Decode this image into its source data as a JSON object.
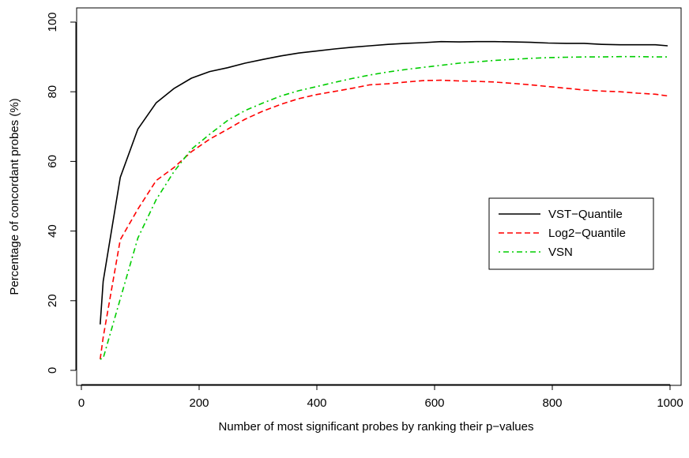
{
  "chart_data": {
    "type": "line",
    "title": "",
    "xlabel": "Number of most significant probes by ranking their p−values",
    "ylabel": "Percentage of concordant probes (%)",
    "xlim": [
      0,
      1000
    ],
    "ylim": [
      0,
      100
    ],
    "x_ticks": [
      0,
      200,
      400,
      600,
      800,
      1000
    ],
    "x_tick_labels": [
      "0",
      "200",
      "400",
      "600",
      "800",
      "1000"
    ],
    "y_ticks": [
      0,
      20,
      40,
      60,
      80,
      100
    ],
    "y_tick_labels": [
      "0",
      "20",
      "40",
      "60",
      "80",
      "100"
    ],
    "grid": false,
    "legend_position": "right",
    "series": [
      {
        "name": "VST−Quantile",
        "color": "#000000",
        "dash": "solid",
        "x": [
          32,
          37,
          66,
          96,
          127,
          157,
          187,
          218,
          248,
          278,
          309,
          339,
          369,
          400,
          430,
          460,
          490,
          521,
          551,
          581,
          611,
          642,
          672,
          702,
          733,
          763,
          793,
          824,
          854,
          884,
          915,
          945,
          975,
          996
        ],
        "y": [
          13.2,
          25.6,
          55.4,
          69.3,
          76.8,
          80.9,
          83.9,
          85.8,
          86.9,
          88.2,
          89.3,
          90.3,
          91.1,
          91.7,
          92.3,
          92.8,
          93.2,
          93.6,
          93.9,
          94.1,
          94.4,
          94.3,
          94.4,
          94.4,
          94.3,
          94.2,
          94.0,
          93.9,
          93.9,
          93.6,
          93.5,
          93.5,
          93.5,
          93.2
        ]
      },
      {
        "name": "Log2−Quantile",
        "color": "#ff0000",
        "dash": "dashed",
        "x": [
          32,
          37,
          66,
          96,
          127,
          157,
          187,
          218,
          248,
          278,
          309,
          339,
          369,
          400,
          430,
          460,
          490,
          521,
          551,
          581,
          611,
          642,
          672,
          702,
          733,
          763,
          793,
          824,
          854,
          884,
          915,
          945,
          975,
          996
        ],
        "y": [
          3.2,
          9.5,
          37.5,
          46.3,
          54.5,
          58.2,
          62.8,
          66.4,
          69.2,
          72.1,
          74.5,
          76.4,
          78.0,
          79.2,
          80.1,
          81.0,
          82.0,
          82.3,
          82.8,
          83.2,
          83.3,
          83.1,
          83.0,
          82.8,
          82.4,
          82.0,
          81.5,
          81.0,
          80.5,
          80.2,
          80.0,
          79.6,
          79.3,
          78.8
        ]
      },
      {
        "name": "VSN",
        "color": "#00cd00",
        "dash": "dotdash",
        "x": [
          32,
          37,
          66,
          96,
          127,
          157,
          187,
          218,
          248,
          278,
          309,
          339,
          369,
          400,
          430,
          460,
          490,
          521,
          551,
          581,
          611,
          642,
          672,
          702,
          733,
          763,
          793,
          824,
          854,
          884,
          915,
          945,
          975,
          996
        ],
        "y": [
          3.2,
          3.5,
          20.5,
          38.0,
          49.0,
          57.0,
          63.5,
          67.8,
          71.7,
          74.6,
          76.8,
          78.8,
          80.3,
          81.5,
          82.7,
          83.8,
          84.8,
          85.7,
          86.4,
          87.0,
          87.6,
          88.2,
          88.6,
          89.0,
          89.3,
          89.6,
          89.8,
          89.9,
          90.0,
          90.0,
          90.1,
          90.1,
          90.0,
          90.0
        ]
      }
    ]
  }
}
